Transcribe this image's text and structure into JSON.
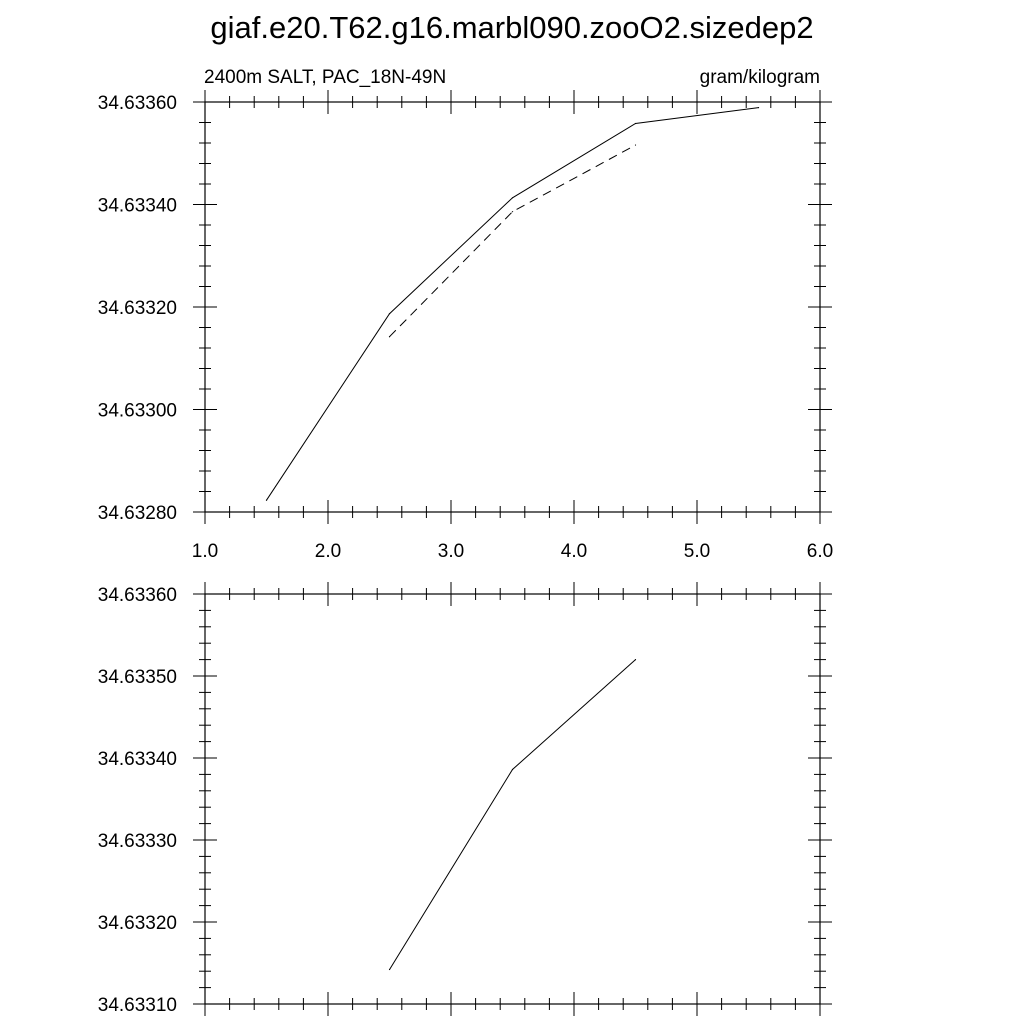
{
  "figure": {
    "title": "giaf.e20.T62.g16.marbl090.zooO2.sizedep2"
  },
  "chart_data": [
    {
      "type": "line",
      "subtitle_left": "2400m SALT, PAC_18N-49N",
      "subtitle_right": "gram/kilogram",
      "xlim": [
        1.0,
        6.0
      ],
      "ylim": [
        34.6328,
        34.6336
      ],
      "x_ticks": [
        "1.0",
        "2.0",
        "3.0",
        "4.0",
        "5.0",
        "6.0"
      ],
      "y_ticks": [
        "34.63280",
        "34.63300",
        "34.63320",
        "34.63340",
        "34.63360"
      ],
      "y_tick_values": [
        34.6328,
        34.633,
        34.6332,
        34.6334,
        34.6336
      ],
      "grid": false,
      "series": [
        {
          "style": "solid",
          "color": "#000000",
          "x": [
            1.5,
            2.5,
            3.5,
            4.5,
            5.5
          ],
          "y": [
            34.632823,
            34.633187,
            34.633413,
            34.633558,
            34.633589
          ]
        },
        {
          "style": "dashed",
          "color": "#000000",
          "x": [
            2.5,
            3.5,
            4.5
          ],
          "y": [
            34.633142,
            34.633386,
            34.633516
          ]
        }
      ]
    },
    {
      "type": "line",
      "xlim": [
        1.0,
        6.0
      ],
      "ylim": [
        34.6331,
        34.6336
      ],
      "y_ticks": [
        "34.63310",
        "34.63320",
        "34.63330",
        "34.63340",
        "34.63350",
        "34.63360"
      ],
      "y_tick_values": [
        34.6331,
        34.6332,
        34.6333,
        34.6334,
        34.6335,
        34.6336
      ],
      "grid": false,
      "series": [
        {
          "style": "solid",
          "color": "#000000",
          "x": [
            2.5,
            3.5,
            4.5
          ],
          "y": [
            34.633142,
            34.633386,
            34.63352
          ]
        }
      ]
    }
  ]
}
